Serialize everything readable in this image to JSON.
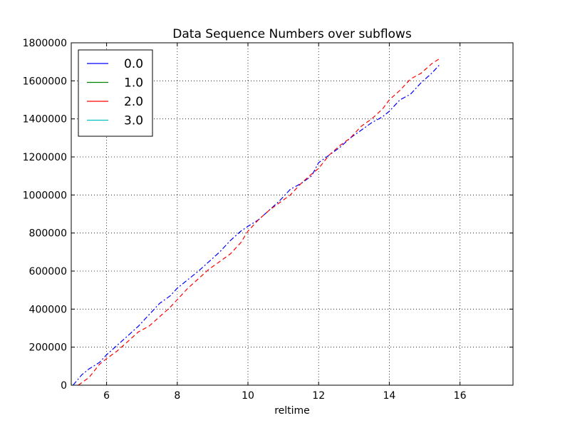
{
  "chart_data": {
    "type": "line",
    "title": "Data Sequence Numbers over subflows",
    "xlabel": "reltime",
    "ylabel": "",
    "xlim": [
      5,
      17.5
    ],
    "ylim": [
      0,
      1800000
    ],
    "xticks": [
      6,
      8,
      10,
      12,
      14,
      16
    ],
    "xtick_labels": [
      "6",
      "8",
      "10",
      "12",
      "14",
      "16"
    ],
    "yticks": [
      0,
      200000,
      400000,
      600000,
      800000,
      1000000,
      1200000,
      1400000,
      1600000,
      1800000
    ],
    "ytick_labels": [
      "0",
      "200000",
      "400000",
      "600000",
      "800000",
      "1000000",
      "1200000",
      "1400000",
      "1600000",
      "1800000"
    ],
    "grid": true,
    "legend_position": "top-left",
    "series": [
      {
        "name": "0.0",
        "color": "#0000ff",
        "style": "dashdot",
        "x": [
          5.05,
          5.3,
          5.5,
          5.8,
          6.0,
          6.3,
          6.6,
          6.9,
          7.2,
          7.5,
          7.8,
          8.0,
          8.3,
          8.6,
          8.9,
          9.2,
          9.5,
          9.8,
          10.0,
          10.3,
          10.6,
          10.9,
          11.2,
          11.5,
          11.8,
          12.0,
          12.3,
          12.6,
          12.9,
          13.2,
          13.5,
          13.8,
          14.0,
          14.3,
          14.6,
          14.9,
          15.2,
          15.45
        ],
        "values": [
          0,
          55000,
          85000,
          120000,
          160000,
          210000,
          260000,
          310000,
          370000,
          430000,
          470000,
          510000,
          555000,
          600000,
          650000,
          700000,
          760000,
          810000,
          835000,
          870000,
          920000,
          970000,
          1030000,
          1060000,
          1100000,
          1170000,
          1210000,
          1250000,
          1300000,
          1340000,
          1380000,
          1410000,
          1440000,
          1500000,
          1530000,
          1590000,
          1640000,
          1690000
        ]
      },
      {
        "name": "1.0",
        "color": "#008000",
        "style": "solid",
        "x": [],
        "values": []
      },
      {
        "name": "2.0",
        "color": "#ff0000",
        "style": "dashed",
        "x": [
          5.2,
          5.5,
          5.8,
          6.0,
          6.3,
          6.6,
          6.9,
          7.2,
          7.5,
          7.8,
          8.0,
          8.3,
          8.6,
          8.9,
          9.2,
          9.5,
          9.8,
          10.0,
          10.3,
          10.6,
          10.9,
          11.2,
          11.5,
          11.8,
          12.0,
          12.3,
          12.6,
          12.9,
          13.2,
          13.5,
          13.8,
          14.0,
          14.3,
          14.6,
          14.9,
          15.2,
          15.45
        ],
        "values": [
          0,
          40000,
          110000,
          140000,
          180000,
          230000,
          280000,
          310000,
          360000,
          410000,
          450000,
          510000,
          560000,
          610000,
          650000,
          690000,
          750000,
          810000,
          870000,
          920000,
          960000,
          1000000,
          1060000,
          1110000,
          1140000,
          1210000,
          1260000,
          1300000,
          1360000,
          1400000,
          1450000,
          1500000,
          1550000,
          1610000,
          1640000,
          1690000,
          1720000
        ]
      },
      {
        "name": "3.0",
        "color": "#00bfbf",
        "style": "solid",
        "x": [],
        "values": []
      }
    ]
  }
}
